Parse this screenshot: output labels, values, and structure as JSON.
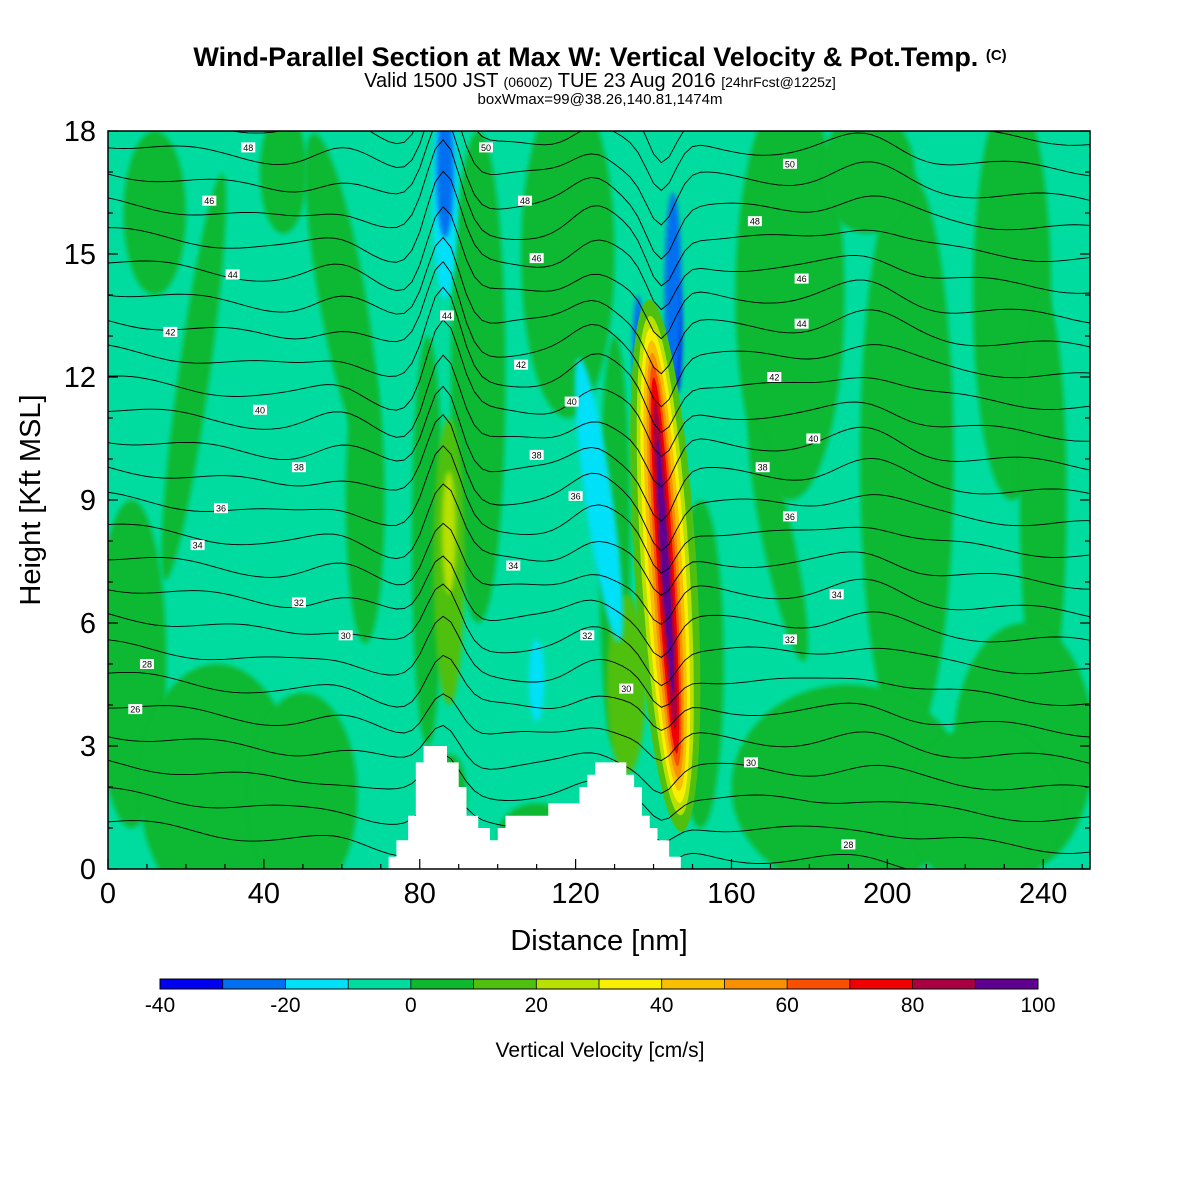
{
  "title": {
    "main": "Wind-Parallel Section at Max W: Vertical Velocity & Pot.Temp.",
    "copyright": "(C)",
    "valid_prefix": "Valid 1500 JST",
    "valid_zulu": "(0600Z)",
    "valid_date": "TUE 23 Aug 2016",
    "forecast": "[24hrFcst@1225z]",
    "box": "boxWmax=99@38.26,140.81,1474m"
  },
  "chart_data": {
    "type": "heatmap",
    "xlabel": "Distance [nm]",
    "ylabel": "Height [Kft MSL]",
    "xlim": [
      0,
      252
    ],
    "ylim": [
      0,
      18
    ],
    "x_ticks": [
      "0",
      "40",
      "80",
      "120",
      "160",
      "200",
      "240"
    ],
    "y_ticks": [
      "0",
      "3",
      "6",
      "9",
      "12",
      "15",
      "18"
    ],
    "colorbar": {
      "title": "Vertical Velocity [cm/s]",
      "tick_labels": [
        "-40",
        "-20",
        "0",
        "20",
        "40",
        "60",
        "80",
        "100"
      ],
      "levels": [
        -40,
        -30,
        -20,
        -10,
        0,
        10,
        20,
        30,
        40,
        50,
        60,
        70,
        80,
        90,
        100
      ],
      "colors": [
        "#0000f0",
        "#0070f0",
        "#00e0f8",
        "#00dca0",
        "#10b830",
        "#50c010",
        "#b8e000",
        "#f8f000",
        "#f8c000",
        "#f89000",
        "#f85000",
        "#f00000",
        "#a80040",
        "#600090"
      ]
    },
    "terrain": [
      [
        0,
        0
      ],
      [
        72,
        0
      ],
      [
        72,
        0.3
      ],
      [
        74,
        0.3
      ],
      [
        74,
        0.7
      ],
      [
        77,
        0.7
      ],
      [
        77,
        1.3
      ],
      [
        79,
        1.3
      ],
      [
        79,
        2.6
      ],
      [
        81,
        2.6
      ],
      [
        81,
        3
      ],
      [
        87,
        3
      ],
      [
        87,
        2.6
      ],
      [
        90,
        2.6
      ],
      [
        90,
        2
      ],
      [
        92,
        2
      ],
      [
        92,
        1.3
      ],
      [
        95,
        1.3
      ],
      [
        95,
        1
      ],
      [
        98,
        1
      ],
      [
        98,
        0.7
      ],
      [
        100,
        0.7
      ],
      [
        100,
        1
      ],
      [
        102,
        1
      ],
      [
        102,
        1.3
      ],
      [
        113,
        1.3
      ],
      [
        113,
        1.6
      ],
      [
        121,
        1.6
      ],
      [
        121,
        2
      ],
      [
        123,
        2
      ],
      [
        123,
        2.3
      ],
      [
        125,
        2.3
      ],
      [
        125,
        2.6
      ],
      [
        133,
        2.6
      ],
      [
        133,
        2.3
      ],
      [
        135,
        2.3
      ],
      [
        135,
        2
      ],
      [
        137,
        2
      ],
      [
        137,
        1.3
      ],
      [
        139,
        1.3
      ],
      [
        139,
        1
      ],
      [
        141,
        1
      ],
      [
        141,
        0.7
      ],
      [
        144,
        0.7
      ],
      [
        144,
        0.3
      ],
      [
        147,
        0.3
      ],
      [
        147,
        0
      ],
      [
        252,
        0
      ]
    ],
    "wind_features": [
      {
        "name": "max updraft core",
        "x": 143,
        "y": 7.5,
        "value": 99
      },
      {
        "name": "downdraft aloft",
        "x": 86,
        "y": 16.5,
        "value": -40
      },
      {
        "name": "downdraft near core",
        "x": 146,
        "y": 12.5,
        "value": -40
      }
    ],
    "theta_labels": [
      {
        "value": "48",
        "x": 36,
        "y": 17.6
      },
      {
        "value": "46",
        "x": 26,
        "y": 16.3
      },
      {
        "value": "44",
        "x": 32,
        "y": 14.5
      },
      {
        "value": "42",
        "x": 16,
        "y": 13.1
      },
      {
        "value": "40",
        "x": 39,
        "y": 11.2
      },
      {
        "value": "38",
        "x": 49,
        "y": 9.8
      },
      {
        "value": "36",
        "x": 29,
        "y": 8.8
      },
      {
        "value": "34",
        "x": 23,
        "y": 7.9
      },
      {
        "value": "32",
        "x": 49,
        "y": 6.5
      },
      {
        "value": "30",
        "x": 61,
        "y": 5.7
      },
      {
        "value": "28",
        "x": 10,
        "y": 5
      },
      {
        "value": "26",
        "x": 7,
        "y": 3.9
      },
      {
        "value": "50",
        "x": 97,
        "y": 17.6
      },
      {
        "value": "48",
        "x": 107,
        "y": 16.3
      },
      {
        "value": "46",
        "x": 110,
        "y": 14.9
      },
      {
        "value": "44",
        "x": 87,
        "y": 13.5
      },
      {
        "value": "42",
        "x": 106,
        "y": 12.3
      },
      {
        "value": "40",
        "x": 119,
        "y": 11.4
      },
      {
        "value": "38",
        "x": 110,
        "y": 10.1
      },
      {
        "value": "36",
        "x": 120,
        "y": 9.1
      },
      {
        "value": "34",
        "x": 104,
        "y": 7.4
      },
      {
        "value": "32",
        "x": 123,
        "y": 5.7
      },
      {
        "value": "30",
        "x": 133,
        "y": 4.4
      },
      {
        "value": "50",
        "x": 175,
        "y": 17.2
      },
      {
        "value": "48",
        "x": 166,
        "y": 15.8
      },
      {
        "value": "46",
        "x": 178,
        "y": 14.4
      },
      {
        "value": "44",
        "x": 178,
        "y": 13.3
      },
      {
        "value": "42",
        "x": 171,
        "y": 12
      },
      {
        "value": "40",
        "x": 181,
        "y": 10.5
      },
      {
        "value": "38",
        "x": 168,
        "y": 9.8
      },
      {
        "value": "36",
        "x": 175,
        "y": 8.6
      },
      {
        "value": "34",
        "x": 187,
        "y": 6.7
      },
      {
        "value": "32",
        "x": 175,
        "y": 5.6
      },
      {
        "value": "30",
        "x": 165,
        "y": 2.6
      },
      {
        "value": "28",
        "x": 190,
        "y": 0.6
      }
    ]
  }
}
